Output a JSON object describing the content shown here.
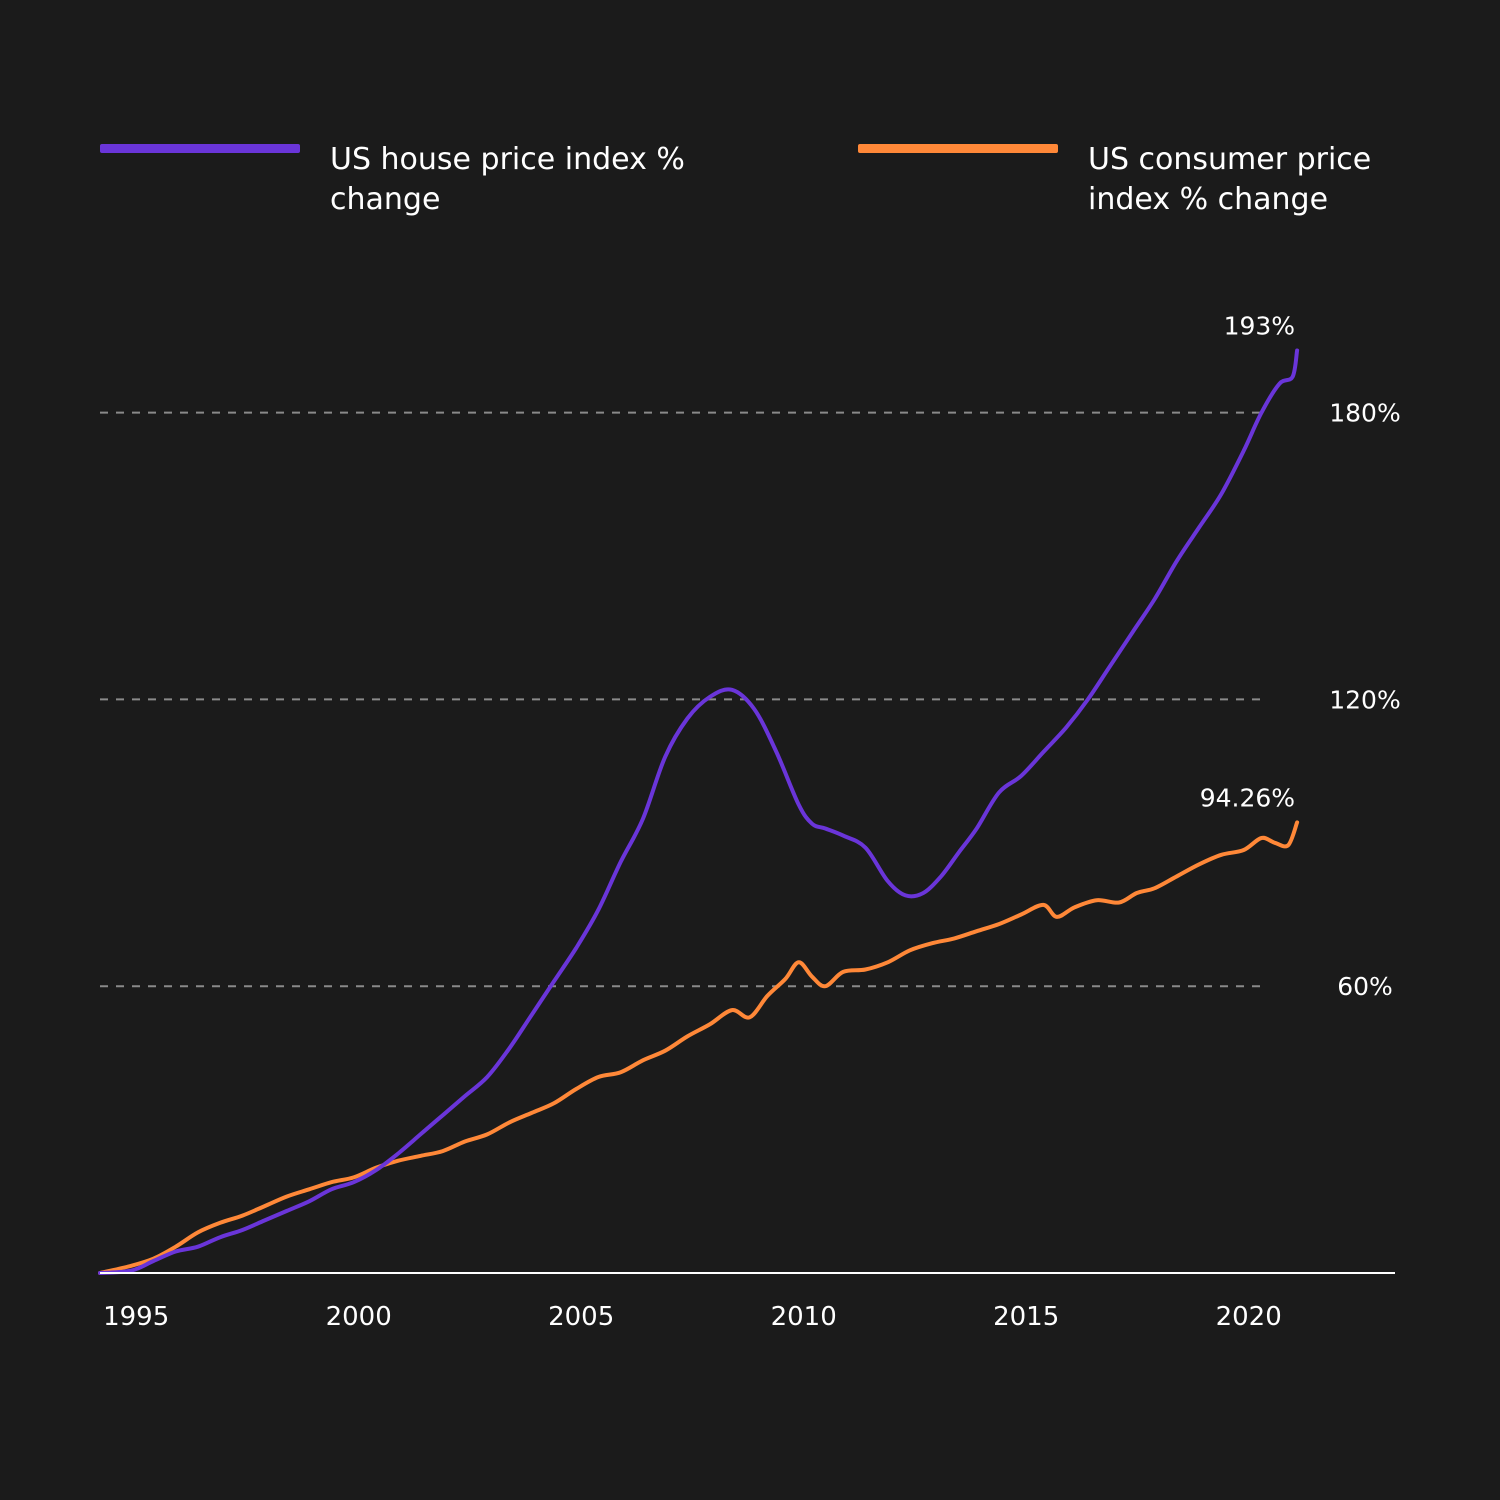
{
  "colors": {
    "background": "#1b1b1b",
    "house": "#6a35d9",
    "cpi": "#ff8838",
    "grid": "#8a8a8a",
    "axis": "#ffffff",
    "text": "#ffffff"
  },
  "legend": [
    {
      "label": "US house price index % change",
      "color": "#6a35d9"
    },
    {
      "label": "US consumer price index % change",
      "color": "#ff8838"
    }
  ],
  "chart_data": {
    "type": "line",
    "title": "",
    "xlabel": "",
    "ylabel": "",
    "xlim": [
      1994.3,
      2024
    ],
    "ylim": [
      0,
      200
    ],
    "x_ticks": [
      {
        "value": 1995,
        "label": "1995"
      },
      {
        "value": 2000,
        "label": "2000"
      },
      {
        "value": 2005,
        "label": "2005"
      },
      {
        "value": 2010,
        "label": "2010"
      },
      {
        "value": 2015,
        "label": "2015"
      },
      {
        "value": 2020,
        "label": "2020"
      }
    ],
    "y_gridlines": [
      {
        "value": 60,
        "label": "60%"
      },
      {
        "value": 120,
        "label": "120%"
      },
      {
        "value": 180,
        "label": "180%"
      }
    ],
    "series": [
      {
        "name": "US house price index % change",
        "color": "#6a35d9",
        "end_label": "193%",
        "points": [
          [
            1994.3,
            0
          ],
          [
            1995.0,
            0.5
          ],
          [
            1995.5,
            2.5
          ],
          [
            1996.0,
            4.5
          ],
          [
            1996.5,
            5.5
          ],
          [
            1997.0,
            7.5
          ],
          [
            1997.5,
            9
          ],
          [
            1998.0,
            11
          ],
          [
            1998.5,
            13
          ],
          [
            1999.0,
            15
          ],
          [
            1999.5,
            17.5
          ],
          [
            2000.0,
            19
          ],
          [
            2000.5,
            21.5
          ],
          [
            2001.0,
            25
          ],
          [
            2001.5,
            29
          ],
          [
            2002.0,
            33
          ],
          [
            2002.5,
            37
          ],
          [
            2003.0,
            41
          ],
          [
            2003.5,
            47
          ],
          [
            2004.0,
            54
          ],
          [
            2004.5,
            61
          ],
          [
            2005.0,
            68
          ],
          [
            2005.5,
            76
          ],
          [
            2006.0,
            86
          ],
          [
            2006.5,
            95
          ],
          [
            2007.0,
            108
          ],
          [
            2007.5,
            116
          ],
          [
            2008.0,
            120.5
          ],
          [
            2008.5,
            122
          ],
          [
            2009.0,
            118
          ],
          [
            2009.5,
            109
          ],
          [
            2010.0,
            98
          ],
          [
            2010.3,
            94
          ],
          [
            2010.6,
            93
          ],
          [
            2011.0,
            91.5
          ],
          [
            2011.5,
            89
          ],
          [
            2012.0,
            82
          ],
          [
            2012.4,
            79
          ],
          [
            2012.8,
            79.5
          ],
          [
            2013.2,
            83
          ],
          [
            2013.6,
            88
          ],
          [
            2014.0,
            93
          ],
          [
            2014.5,
            100.5
          ],
          [
            2015.0,
            104
          ],
          [
            2015.5,
            109
          ],
          [
            2016.0,
            114
          ],
          [
            2016.5,
            120
          ],
          [
            2017.0,
            127
          ],
          [
            2017.5,
            134
          ],
          [
            2018.0,
            141
          ],
          [
            2018.5,
            149
          ],
          [
            2019.0,
            156
          ],
          [
            2019.5,
            163
          ],
          [
            2020.0,
            172
          ],
          [
            2020.4,
            180
          ],
          [
            2020.8,
            186
          ],
          [
            2021.1,
            187.5
          ],
          [
            2021.2,
            193
          ]
        ]
      },
      {
        "name": "US consumer price index % change",
        "color": "#ff8838",
        "end_label": "94.26%",
        "points": [
          [
            1994.3,
            0
          ],
          [
            1995.0,
            1.5
          ],
          [
            1995.5,
            3
          ],
          [
            1996.0,
            5.5
          ],
          [
            1996.5,
            8.5
          ],
          [
            1997.0,
            10.5
          ],
          [
            1997.5,
            12
          ],
          [
            1998.0,
            14
          ],
          [
            1998.5,
            16
          ],
          [
            1999.0,
            17.5
          ],
          [
            1999.5,
            19
          ],
          [
            2000.0,
            20
          ],
          [
            2000.5,
            22
          ],
          [
            2001.0,
            23.5
          ],
          [
            2001.5,
            24.5
          ],
          [
            2002.0,
            25.5
          ],
          [
            2002.5,
            27.5
          ],
          [
            2003.0,
            29
          ],
          [
            2003.5,
            31.5
          ],
          [
            2004.0,
            33.5
          ],
          [
            2004.5,
            35.5
          ],
          [
            2005.0,
            38.5
          ],
          [
            2005.5,
            41
          ],
          [
            2006.0,
            42
          ],
          [
            2006.5,
            44.5
          ],
          [
            2007.0,
            46.5
          ],
          [
            2007.5,
            49.5
          ],
          [
            2008.0,
            52
          ],
          [
            2008.5,
            55
          ],
          [
            2008.9,
            53.5
          ],
          [
            2009.3,
            58
          ],
          [
            2009.7,
            61.5
          ],
          [
            2010.0,
            65
          ],
          [
            2010.3,
            62
          ],
          [
            2010.6,
            60
          ],
          [
            2011.0,
            63
          ],
          [
            2011.5,
            63.5
          ],
          [
            2012.0,
            65
          ],
          [
            2012.5,
            67.5
          ],
          [
            2013.0,
            69
          ],
          [
            2013.5,
            70
          ],
          [
            2014.0,
            71.5
          ],
          [
            2014.5,
            73
          ],
          [
            2015.0,
            75
          ],
          [
            2015.5,
            77
          ],
          [
            2015.8,
            74.5
          ],
          [
            2016.2,
            76.5
          ],
          [
            2016.7,
            78
          ],
          [
            2017.2,
            77.5
          ],
          [
            2017.6,
            79.5
          ],
          [
            2018.0,
            80.5
          ],
          [
            2018.5,
            83
          ],
          [
            2019.0,
            85.5
          ],
          [
            2019.5,
            87.5
          ],
          [
            2020.0,
            88.5
          ],
          [
            2020.4,
            91
          ],
          [
            2020.7,
            90
          ],
          [
            2021.0,
            89.5
          ],
          [
            2021.2,
            94.26
          ]
        ]
      }
    ]
  }
}
